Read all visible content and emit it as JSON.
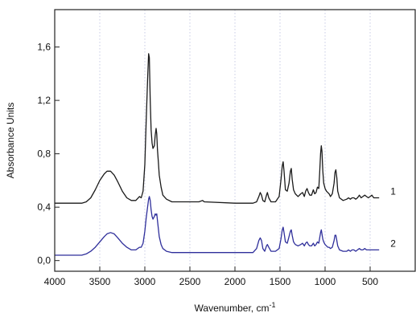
{
  "chart_data": {
    "type": "line",
    "xlabel": "Wavenumber, cm",
    "xlabel_superscript": "-1",
    "ylabel": "Absorbance Units",
    "xlim": [
      4000,
      0
    ],
    "ylim": [
      -0.08,
      1.88
    ],
    "x_ticks": [
      4000,
      3500,
      3000,
      2500,
      2000,
      1500,
      1000,
      500
    ],
    "x_tick_labels": [
      "4000",
      "3500",
      "3000",
      "2500",
      "2000",
      "1500",
      "1000",
      "500"
    ],
    "y_ticks": [
      0.0,
      0.4,
      0.8,
      1.2,
      1.6
    ],
    "y_tick_labels": [
      "0,0",
      "0,4",
      "0,8",
      "1,2",
      "1,6"
    ],
    "grid": "vertical dotted",
    "series": [
      {
        "name": "1",
        "color": "#1a1a1a",
        "points": [
          [
            4000,
            0.43
          ],
          [
            3800,
            0.43
          ],
          [
            3700,
            0.43
          ],
          [
            3650,
            0.44
          ],
          [
            3600,
            0.47
          ],
          [
            3550,
            0.53
          ],
          [
            3500,
            0.6
          ],
          [
            3450,
            0.65
          ],
          [
            3420,
            0.67
          ],
          [
            3380,
            0.67
          ],
          [
            3340,
            0.64
          ],
          [
            3300,
            0.59
          ],
          [
            3250,
            0.52
          ],
          [
            3200,
            0.47
          ],
          [
            3150,
            0.45
          ],
          [
            3100,
            0.45
          ],
          [
            3060,
            0.48
          ],
          [
            3040,
            0.47
          ],
          [
            3020,
            0.52
          ],
          [
            3000,
            0.72
          ],
          [
            2985,
            1.05
          ],
          [
            2970,
            1.35
          ],
          [
            2958,
            1.55
          ],
          [
            2950,
            1.52
          ],
          [
            2940,
            1.2
          ],
          [
            2930,
            0.98
          ],
          [
            2920,
            0.88
          ],
          [
            2910,
            0.84
          ],
          [
            2895,
            0.86
          ],
          [
            2885,
            0.94
          ],
          [
            2875,
            0.99
          ],
          [
            2868,
            0.95
          ],
          [
            2860,
            0.83
          ],
          [
            2850,
            0.74
          ],
          [
            2840,
            0.64
          ],
          [
            2820,
            0.55
          ],
          [
            2800,
            0.49
          ],
          [
            2760,
            0.46
          ],
          [
            2700,
            0.44
          ],
          [
            2400,
            0.44
          ],
          [
            2360,
            0.45
          ],
          [
            2340,
            0.44
          ],
          [
            2000,
            0.43
          ],
          [
            1800,
            0.43
          ],
          [
            1760,
            0.44
          ],
          [
            1735,
            0.48
          ],
          [
            1720,
            0.51
          ],
          [
            1705,
            0.49
          ],
          [
            1690,
            0.45
          ],
          [
            1670,
            0.44
          ],
          [
            1650,
            0.49
          ],
          [
            1640,
            0.51
          ],
          [
            1625,
            0.47
          ],
          [
            1600,
            0.44
          ],
          [
            1550,
            0.44
          ],
          [
            1510,
            0.48
          ],
          [
            1490,
            0.6
          ],
          [
            1475,
            0.71
          ],
          [
            1465,
            0.74
          ],
          [
            1455,
            0.67
          ],
          [
            1440,
            0.53
          ],
          [
            1420,
            0.52
          ],
          [
            1400,
            0.58
          ],
          [
            1385,
            0.67
          ],
          [
            1375,
            0.69
          ],
          [
            1365,
            0.61
          ],
          [
            1350,
            0.53
          ],
          [
            1330,
            0.5
          ],
          [
            1300,
            0.48
          ],
          [
            1270,
            0.5
          ],
          [
            1250,
            0.51
          ],
          [
            1230,
            0.48
          ],
          [
            1215,
            0.52
          ],
          [
            1200,
            0.54
          ],
          [
            1185,
            0.51
          ],
          [
            1170,
            0.49
          ],
          [
            1150,
            0.49
          ],
          [
            1130,
            0.53
          ],
          [
            1115,
            0.5
          ],
          [
            1100,
            0.51
          ],
          [
            1085,
            0.55
          ],
          [
            1070,
            0.54
          ],
          [
            1060,
            0.66
          ],
          [
            1050,
            0.8
          ],
          [
            1042,
            0.86
          ],
          [
            1035,
            0.82
          ],
          [
            1025,
            0.67
          ],
          [
            1015,
            0.58
          ],
          [
            1000,
            0.54
          ],
          [
            985,
            0.52
          ],
          [
            970,
            0.51
          ],
          [
            955,
            0.5
          ],
          [
            940,
            0.48
          ],
          [
            920,
            0.5
          ],
          [
            900,
            0.58
          ],
          [
            890,
            0.66
          ],
          [
            880,
            0.68
          ],
          [
            870,
            0.62
          ],
          [
            860,
            0.52
          ],
          [
            840,
            0.47
          ],
          [
            800,
            0.45
          ],
          [
            760,
            0.46
          ],
          [
            740,
            0.47
          ],
          [
            720,
            0.46
          ],
          [
            700,
            0.47
          ],
          [
            680,
            0.47
          ],
          [
            660,
            0.46
          ],
          [
            640,
            0.47
          ],
          [
            620,
            0.49
          ],
          [
            600,
            0.47
          ],
          [
            580,
            0.48
          ],
          [
            560,
            0.49
          ],
          [
            540,
            0.48
          ],
          [
            520,
            0.47
          ],
          [
            500,
            0.48
          ],
          [
            480,
            0.49
          ],
          [
            460,
            0.47
          ],
          [
            440,
            0.47
          ],
          [
            420,
            0.47
          ],
          [
            400,
            0.47
          ]
        ]
      },
      {
        "name": "2",
        "color": "#2f2f9b",
        "points": [
          [
            4000,
            0.04
          ],
          [
            3800,
            0.04
          ],
          [
            3700,
            0.04
          ],
          [
            3650,
            0.05
          ],
          [
            3600,
            0.07
          ],
          [
            3550,
            0.1
          ],
          [
            3500,
            0.14
          ],
          [
            3450,
            0.18
          ],
          [
            3420,
            0.2
          ],
          [
            3380,
            0.21
          ],
          [
            3340,
            0.2
          ],
          [
            3300,
            0.17
          ],
          [
            3250,
            0.13
          ],
          [
            3200,
            0.1
          ],
          [
            3150,
            0.08
          ],
          [
            3100,
            0.08
          ],
          [
            3060,
            0.1
          ],
          [
            3040,
            0.1
          ],
          [
            3020,
            0.13
          ],
          [
            3000,
            0.22
          ],
          [
            2985,
            0.32
          ],
          [
            2970,
            0.4
          ],
          [
            2958,
            0.46
          ],
          [
            2950,
            0.48
          ],
          [
            2940,
            0.45
          ],
          [
            2930,
            0.38
          ],
          [
            2920,
            0.33
          ],
          [
            2910,
            0.31
          ],
          [
            2895,
            0.33
          ],
          [
            2885,
            0.35
          ],
          [
            2875,
            0.34
          ],
          [
            2868,
            0.35
          ],
          [
            2860,
            0.3
          ],
          [
            2850,
            0.24
          ],
          [
            2840,
            0.18
          ],
          [
            2820,
            0.12
          ],
          [
            2800,
            0.09
          ],
          [
            2760,
            0.07
          ],
          [
            2700,
            0.06
          ],
          [
            2400,
            0.06
          ],
          [
            2360,
            0.06
          ],
          [
            2340,
            0.06
          ],
          [
            2000,
            0.06
          ],
          [
            1800,
            0.06
          ],
          [
            1760,
            0.09
          ],
          [
            1735,
            0.15
          ],
          [
            1720,
            0.17
          ],
          [
            1705,
            0.15
          ],
          [
            1690,
            0.09
          ],
          [
            1670,
            0.07
          ],
          [
            1650,
            0.11
          ],
          [
            1640,
            0.12
          ],
          [
            1625,
            0.1
          ],
          [
            1600,
            0.07
          ],
          [
            1550,
            0.07
          ],
          [
            1510,
            0.09
          ],
          [
            1490,
            0.16
          ],
          [
            1475,
            0.23
          ],
          [
            1465,
            0.25
          ],
          [
            1455,
            0.21
          ],
          [
            1440,
            0.14
          ],
          [
            1420,
            0.13
          ],
          [
            1400,
            0.18
          ],
          [
            1385,
            0.22
          ],
          [
            1375,
            0.23
          ],
          [
            1365,
            0.19
          ],
          [
            1350,
            0.14
          ],
          [
            1330,
            0.12
          ],
          [
            1300,
            0.11
          ],
          [
            1270,
            0.12
          ],
          [
            1250,
            0.13
          ],
          [
            1230,
            0.11
          ],
          [
            1215,
            0.13
          ],
          [
            1200,
            0.14
          ],
          [
            1185,
            0.12
          ],
          [
            1170,
            0.11
          ],
          [
            1150,
            0.11
          ],
          [
            1130,
            0.13
          ],
          [
            1115,
            0.11
          ],
          [
            1100,
            0.12
          ],
          [
            1085,
            0.14
          ],
          [
            1070,
            0.13
          ],
          [
            1060,
            0.17
          ],
          [
            1050,
            0.21
          ],
          [
            1042,
            0.23
          ],
          [
            1035,
            0.2
          ],
          [
            1025,
            0.16
          ],
          [
            1015,
            0.14
          ],
          [
            1000,
            0.12
          ],
          [
            985,
            0.11
          ],
          [
            970,
            0.1
          ],
          [
            955,
            0.1
          ],
          [
            940,
            0.09
          ],
          [
            920,
            0.1
          ],
          [
            900,
            0.15
          ],
          [
            890,
            0.19
          ],
          [
            880,
            0.19
          ],
          [
            870,
            0.15
          ],
          [
            860,
            0.11
          ],
          [
            840,
            0.08
          ],
          [
            800,
            0.07
          ],
          [
            760,
            0.07
          ],
          [
            740,
            0.08
          ],
          [
            720,
            0.07
          ],
          [
            700,
            0.08
          ],
          [
            680,
            0.08
          ],
          [
            660,
            0.07
          ],
          [
            640,
            0.08
          ],
          [
            620,
            0.09
          ],
          [
            600,
            0.08
          ],
          [
            580,
            0.08
          ],
          [
            560,
            0.09
          ],
          [
            540,
            0.08
          ],
          [
            520,
            0.08
          ],
          [
            500,
            0.08
          ],
          [
            480,
            0.08
          ],
          [
            460,
            0.08
          ],
          [
            440,
            0.08
          ],
          [
            420,
            0.08
          ],
          [
            400,
            0.08
          ]
        ]
      }
    ]
  }
}
